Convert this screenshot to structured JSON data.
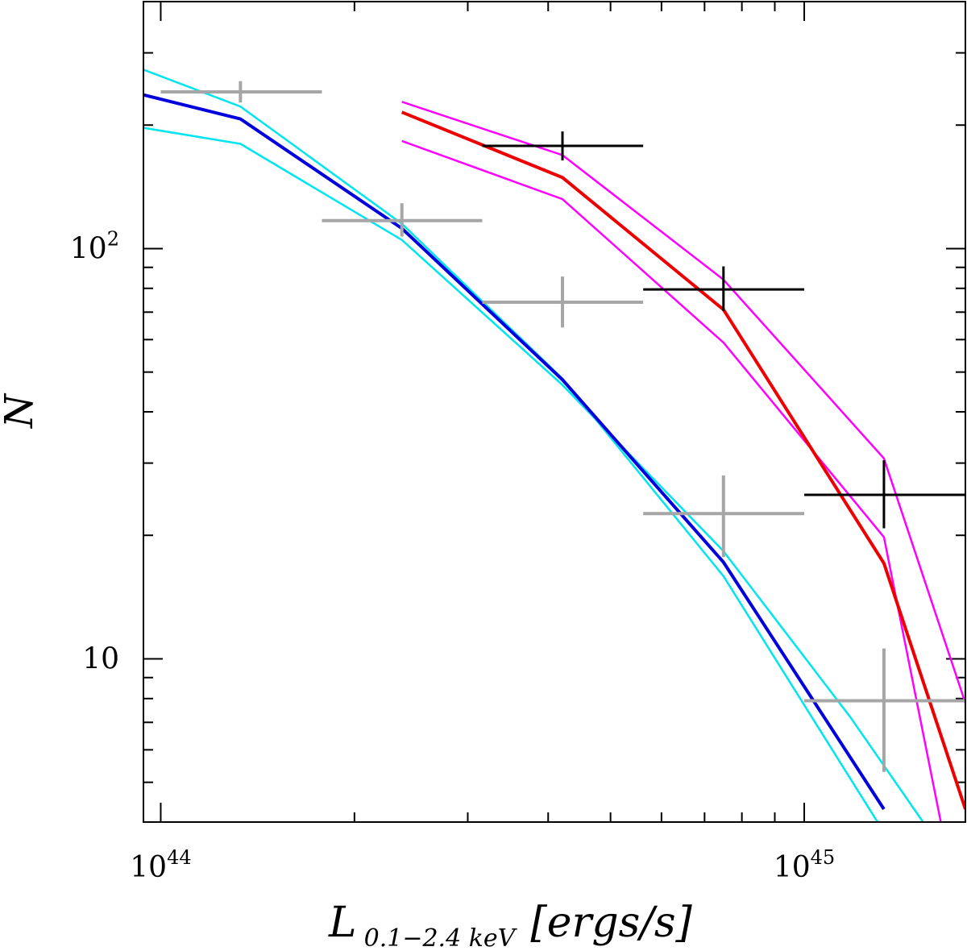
{
  "chart_data": {
    "type": "line",
    "title": "",
    "xlabel": "L",
    "xlabel_subscript": "0.1−2.4 keV",
    "xlabel_units": "[ergs/s]",
    "ylabel": "N",
    "xscale": "log",
    "yscale": "log",
    "xlim": [
      9.4e+43,
      1.78e+45
    ],
    "ylim": [
      4.0,
      400
    ],
    "x_tick_labels": [
      {
        "value": 1e+44,
        "base": "10",
        "exp": "44"
      },
      {
        "value": 1e+45,
        "base": "10",
        "exp": "45"
      }
    ],
    "y_tick_labels": [
      {
        "value": 10,
        "base": "10",
        "exp": ""
      },
      {
        "value": 100,
        "base": "10",
        "exp": "2"
      }
    ],
    "series": [
      {
        "kind": "line",
        "color": "#00e5ee",
        "x": [
          9.4e+43,
          1.33e+44,
          2.37e+44,
          4.21e+44,
          7.49e+44,
          1.3e+45
        ],
        "y": [
          273,
          222,
          115,
          48.2,
          15.9,
          4.0
        ]
      },
      {
        "kind": "line",
        "color": "#00e5ee",
        "x": [
          9.4e+43,
          1.33e+44,
          2.37e+44,
          4.21e+44,
          7.49e+44,
          1.18e+45,
          1.53e+45
        ],
        "y": [
          197,
          180,
          105,
          46.5,
          18.3,
          7.2,
          4.0
        ]
      },
      {
        "kind": "line",
        "color": "#0000dd",
        "x": [
          9.4e+43,
          1.33e+44,
          2.37e+44,
          4.21e+44,
          7.49e+44,
          1.33e+45
        ],
        "y": [
          237,
          207,
          112,
          47.9,
          17.2,
          4.3
        ]
      },
      {
        "kind": "line",
        "color": "#ff00ff",
        "x": [
          2.37e+44,
          4.21e+44,
          7.49e+44,
          1.33e+45,
          1.63e+45
        ],
        "y": [
          183,
          132,
          59.0,
          19.8,
          4.0
        ]
      },
      {
        "kind": "line",
        "color": "#ff00ff",
        "x": [
          2.37e+44,
          4.21e+44,
          7.49e+44,
          1.33e+45,
          1.78e+45
        ],
        "y": [
          228,
          169,
          84.0,
          30.8,
          7.8
        ]
      },
      {
        "kind": "line",
        "color": "#ee0000",
        "x": [
          2.37e+44,
          4.21e+44,
          7.49e+44,
          1.33e+45,
          1.78e+45
        ],
        "y": [
          215,
          149,
          71.0,
          17.1,
          4.3
        ]
      },
      {
        "kind": "errorbar",
        "color": "#a6a6a6",
        "points": [
          {
            "x": 1.33e+44,
            "y": 241,
            "xlo": 1e+44,
            "xhi": 1.78e+44,
            "ylo": 227,
            "yhi": 256
          },
          {
            "x": 2.37e+44,
            "y": 117,
            "xlo": 1.78e+44,
            "xhi": 3.16e+44,
            "ylo": 107,
            "yhi": 129
          },
          {
            "x": 4.21e+44,
            "y": 74.0,
            "xlo": 3.16e+44,
            "xhi": 5.62e+44,
            "ylo": 64.2,
            "yhi": 85.5
          },
          {
            "x": 7.49e+44,
            "y": 22.6,
            "xlo": 5.62e+44,
            "xhi": 1e+45,
            "ylo": 17.7,
            "yhi": 28.0
          },
          {
            "x": 1.33e+45,
            "y": 7.9,
            "xlo": 1e+45,
            "xhi": 1.78e+45,
            "ylo": 5.3,
            "yhi": 10.6
          }
        ]
      },
      {
        "kind": "errorbar",
        "color": "#000000",
        "points": [
          {
            "x": 4.21e+44,
            "y": 178,
            "xlo": 3.16e+44,
            "xhi": 5.62e+44,
            "ylo": 164,
            "yhi": 193
          },
          {
            "x": 7.49e+44,
            "y": 79.5,
            "xlo": 5.62e+44,
            "xhi": 1e+45,
            "ylo": 70.5,
            "yhi": 90.5
          },
          {
            "x": 1.33e+45,
            "y": 25.1,
            "xlo": 1e+45,
            "xhi": 1.78e+45,
            "ylo": 20.8,
            "yhi": 30.5
          }
        ]
      }
    ]
  }
}
